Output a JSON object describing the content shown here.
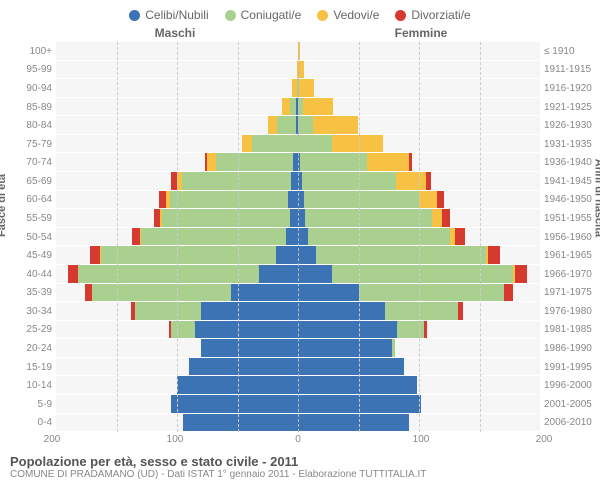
{
  "legend": [
    {
      "label": "Celibi/Nubili",
      "color": "#3b73b4"
    },
    {
      "label": "Coniugati/e",
      "color": "#a9d08e"
    },
    {
      "label": "Vedovi/e",
      "color": "#f7c143"
    },
    {
      "label": "Divorziati/e",
      "color": "#d63a2f"
    }
  ],
  "headers": {
    "male": "Maschi",
    "female": "Femmine"
  },
  "ylabel_left": "Fasce di età",
  "ylabel_right": "Anni di nascita",
  "age_groups": [
    "100+",
    "95-99",
    "90-94",
    "85-89",
    "80-84",
    "75-79",
    "70-74",
    "65-69",
    "60-64",
    "55-59",
    "50-54",
    "45-49",
    "40-44",
    "35-39",
    "30-34",
    "25-29",
    "20-24",
    "15-19",
    "10-14",
    "5-9",
    "0-4"
  ],
  "birth_years": [
    "≤ 1910",
    "1911-1915",
    "1916-1920",
    "1921-1925",
    "1926-1930",
    "1931-1935",
    "1936-1940",
    "1941-1945",
    "1946-1950",
    "1951-1955",
    "1956-1960",
    "1961-1965",
    "1966-1970",
    "1971-1975",
    "1976-1980",
    "1981-1985",
    "1986-1990",
    "1991-1995",
    "1996-2000",
    "2001-2005",
    "2006-2010"
  ],
  "xmax": 200,
  "xticks": [
    200,
    100,
    0,
    100,
    200
  ],
  "male": [
    [
      0,
      0,
      0,
      0
    ],
    [
      0,
      0,
      1,
      0
    ],
    [
      0,
      1,
      4,
      0
    ],
    [
      2,
      5,
      6,
      0
    ],
    [
      2,
      15,
      8,
      0
    ],
    [
      0,
      38,
      8,
      0
    ],
    [
      4,
      64,
      7,
      2
    ],
    [
      6,
      90,
      4,
      5
    ],
    [
      8,
      98,
      3,
      6
    ],
    [
      7,
      105,
      2,
      5
    ],
    [
      10,
      120,
      1,
      6
    ],
    [
      18,
      145,
      1,
      8
    ],
    [
      32,
      150,
      0,
      8
    ],
    [
      55,
      115,
      0,
      6
    ],
    [
      80,
      55,
      0,
      3
    ],
    [
      85,
      20,
      0,
      2
    ],
    [
      80,
      0,
      0,
      0
    ],
    [
      90,
      0,
      0,
      0
    ],
    [
      100,
      0,
      0,
      0
    ],
    [
      105,
      0,
      0,
      0
    ],
    [
      95,
      0,
      0,
      0
    ]
  ],
  "female": [
    [
      0,
      0,
      2,
      0
    ],
    [
      0,
      0,
      5,
      0
    ],
    [
      0,
      1,
      12,
      0
    ],
    [
      0,
      4,
      25,
      0
    ],
    [
      0,
      12,
      38,
      0
    ],
    [
      0,
      28,
      42,
      0
    ],
    [
      2,
      55,
      35,
      2
    ],
    [
      3,
      78,
      25,
      4
    ],
    [
      5,
      95,
      15,
      6
    ],
    [
      6,
      105,
      8,
      7
    ],
    [
      8,
      118,
      4,
      8
    ],
    [
      15,
      140,
      2,
      10
    ],
    [
      28,
      150,
      1,
      10
    ],
    [
      50,
      120,
      0,
      8
    ],
    [
      72,
      60,
      0,
      4
    ],
    [
      82,
      22,
      0,
      3
    ],
    [
      78,
      2,
      0,
      0
    ],
    [
      88,
      0,
      0,
      0
    ],
    [
      98,
      0,
      0,
      0
    ],
    [
      102,
      0,
      0,
      0
    ],
    [
      92,
      0,
      0,
      0
    ]
  ],
  "colors": {
    "single": "#3b73b4",
    "married": "#a9d08e",
    "widowed": "#f7c143",
    "divorced": "#d63a2f",
    "plot_bg": "#f6f6f6",
    "grid": "#cccccc"
  },
  "footer": {
    "title": "Popolazione per età, sesso e stato civile - 2011",
    "sub": "COMUNE DI PRADAMANO (UD) - Dati ISTAT 1° gennaio 2011 - Elaborazione TUTTITALIA.IT"
  }
}
